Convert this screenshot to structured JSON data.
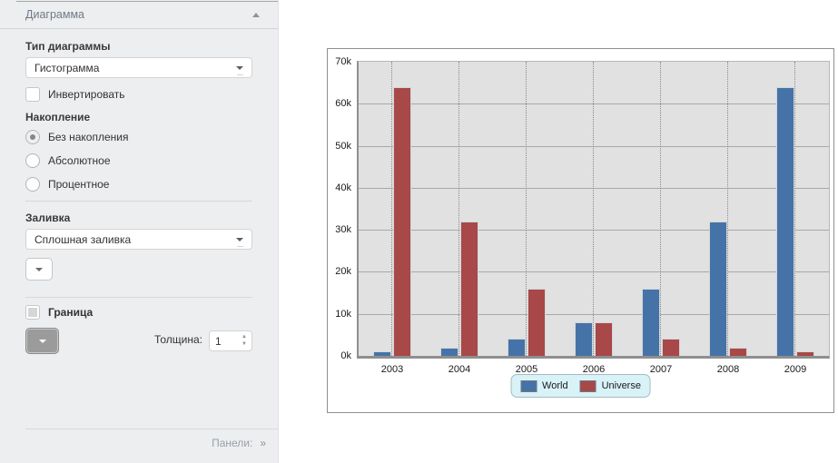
{
  "panel": {
    "title": "Диаграмма",
    "chart_type": {
      "label": "Тип диаграммы",
      "value": "Гистограмма"
    },
    "invert": {
      "label": "Инвертировать",
      "checked": false
    },
    "stacking": {
      "label": "Накопление",
      "options": [
        {
          "label": "Без накопления",
          "selected": true
        },
        {
          "label": "Абсолютное",
          "selected": false
        },
        {
          "label": "Процентное",
          "selected": false
        }
      ]
    },
    "fill": {
      "label": "Заливка",
      "value": "Сплошная заливка"
    },
    "border": {
      "label": "Граница",
      "checked": false,
      "thickness_label": "Толщина:",
      "thickness_value": "1"
    },
    "footer": {
      "label": "Панели:",
      "expander": "»"
    }
  },
  "chart_data": {
    "type": "bar",
    "title": "",
    "xlabel": "",
    "ylabel": "",
    "categories": [
      "2003",
      "2004",
      "2005",
      "2006",
      "2007",
      "2008",
      "2009"
    ],
    "series": [
      {
        "name": "World",
        "color": "#4573a7",
        "values": [
          1000,
          2000,
          4000,
          8000,
          16000,
          32000,
          64000
        ]
      },
      {
        "name": "Universe",
        "color": "#a84848",
        "values": [
          64000,
          32000,
          16000,
          8000,
          4000,
          2000,
          1000
        ]
      }
    ],
    "ylim": [
      0,
      70000
    ],
    "ytick_step": 10000,
    "ytick_labels": [
      "0k",
      "10k",
      "20k",
      "30k",
      "40k",
      "50k",
      "60k",
      "70k"
    ],
    "grid": true,
    "legend_position": "bottom",
    "plot_bg": "#e1e1e1",
    "legend_bg": "#d9f2f8"
  }
}
